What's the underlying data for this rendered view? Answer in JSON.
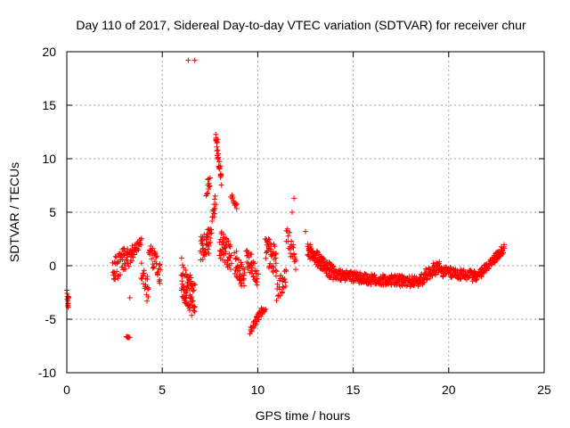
{
  "chart_data": {
    "type": "scatter",
    "title": "Day 110 of 2017, Sidereal Day-to-day VTEC variation (SDTVAR) for receiver chur",
    "xlabel": "GPS time / hours",
    "ylabel": "SDTVAR / TECUs",
    "xlim": [
      0,
      25
    ],
    "ylim": [
      -10,
      20
    ],
    "xticks": [
      0,
      5,
      10,
      15,
      20,
      25
    ],
    "yticks": [
      -10,
      -5,
      0,
      5,
      10,
      15,
      20
    ],
    "grid": true,
    "marker": "+",
    "color": "#ff0000",
    "series": [
      {
        "name": "SDTVAR",
        "segments": [
          {
            "x0": 0.0,
            "x1": 0.1,
            "y0": -2.8,
            "y1": -3.5,
            "amp": 0.6,
            "n": 14
          },
          {
            "x0": 2.4,
            "x1": 3.0,
            "y0": -0.5,
            "y1": 0.5,
            "amp": 1.2,
            "n": 40
          },
          {
            "x0": 3.1,
            "x1": 3.3,
            "y0": -6.7,
            "y1": -6.7,
            "amp": 0.1,
            "n": 6
          },
          {
            "x0": 3.0,
            "x1": 3.5,
            "y0": 0.5,
            "y1": 1.0,
            "amp": 1.0,
            "n": 30
          },
          {
            "x0": 3.5,
            "x1": 3.9,
            "y0": 1.5,
            "y1": 2.3,
            "amp": 0.5,
            "n": 20
          },
          {
            "x0": 3.9,
            "x1": 4.3,
            "y0": -0.5,
            "y1": -2.5,
            "amp": 1.0,
            "n": 20
          },
          {
            "x0": 4.3,
            "x1": 4.9,
            "y0": 1.5,
            "y1": -0.8,
            "amp": 1.0,
            "n": 35
          },
          {
            "x0": 6.0,
            "x1": 6.7,
            "y0": -1.0,
            "y1": -3.5,
            "amp": 1.8,
            "n": 80
          },
          {
            "x0": 6.2,
            "x1": 6.5,
            "y0": 19.2,
            "y1": 19.2,
            "amp": 0.0,
            "n": 1
          },
          {
            "x0": 7.0,
            "x1": 7.5,
            "y0": 1.5,
            "y1": 2.5,
            "amp": 1.2,
            "n": 40
          },
          {
            "x0": 7.3,
            "x1": 7.5,
            "y0": 7.0,
            "y1": 8.0,
            "amp": 0.6,
            "n": 12
          },
          {
            "x0": 7.5,
            "x1": 7.8,
            "y0": 3.0,
            "y1": 6.0,
            "amp": 0.8,
            "n": 20
          },
          {
            "x0": 7.8,
            "x1": 8.1,
            "y0": 12.0,
            "y1": 8.0,
            "amp": 0.5,
            "n": 30
          },
          {
            "x0": 8.0,
            "x1": 8.6,
            "y0": 2.0,
            "y1": 1.0,
            "amp": 1.5,
            "n": 50
          },
          {
            "x0": 8.6,
            "x1": 8.9,
            "y0": 6.5,
            "y1": 5.5,
            "amp": 0.3,
            "n": 15
          },
          {
            "x0": 8.8,
            "x1": 9.3,
            "y0": 0.5,
            "y1": -1.5,
            "amp": 1.2,
            "n": 40
          },
          {
            "x0": 9.4,
            "x1": 10.0,
            "y0": 1.0,
            "y1": -1.0,
            "amp": 1.0,
            "n": 40
          },
          {
            "x0": 9.6,
            "x1": 10.4,
            "y0": -6.0,
            "y1": -3.8,
            "amp": 0.4,
            "n": 40
          },
          {
            "x0": 10.4,
            "x1": 11.0,
            "y0": 1.5,
            "y1": 0.5,
            "amp": 1.5,
            "n": 45
          },
          {
            "x0": 11.0,
            "x1": 11.5,
            "y0": -2.5,
            "y1": -1.0,
            "amp": 1.0,
            "n": 25
          },
          {
            "x0": 11.5,
            "x1": 12.0,
            "y0": 3.0,
            "y1": 0.0,
            "amp": 1.0,
            "n": 25
          },
          {
            "x0": 12.6,
            "x1": 14.0,
            "y0": 1.5,
            "y1": -0.8,
            "amp": 0.7,
            "n": 120
          },
          {
            "x0": 14.0,
            "x1": 16.0,
            "y0": -0.8,
            "y1": -1.3,
            "amp": 0.5,
            "n": 140
          },
          {
            "x0": 16.0,
            "x1": 18.5,
            "y0": -1.3,
            "y1": -1.5,
            "amp": 0.5,
            "n": 160
          },
          {
            "x0": 18.5,
            "x1": 19.5,
            "y0": -1.3,
            "y1": 0.0,
            "amp": 0.6,
            "n": 60
          },
          {
            "x0": 19.5,
            "x1": 21.5,
            "y0": -0.5,
            "y1": -1.0,
            "amp": 0.5,
            "n": 120
          },
          {
            "x0": 21.5,
            "x1": 22.9,
            "y0": -1.0,
            "y1": 1.6,
            "amp": 0.4,
            "n": 90
          }
        ],
        "outliers": [
          {
            "x": 6.7,
            "y": 19.2
          },
          {
            "x": 11.9,
            "y": 6.3
          },
          {
            "x": 11.8,
            "y": 5.0
          },
          {
            "x": 12.5,
            "y": 3.2
          },
          {
            "x": 3.2,
            "y": -6.7
          },
          {
            "x": 4.2,
            "y": -3.3
          },
          {
            "x": 3.3,
            "y": -3.0
          },
          {
            "x": 7.9,
            "y": 11.8
          }
        ]
      }
    ]
  }
}
